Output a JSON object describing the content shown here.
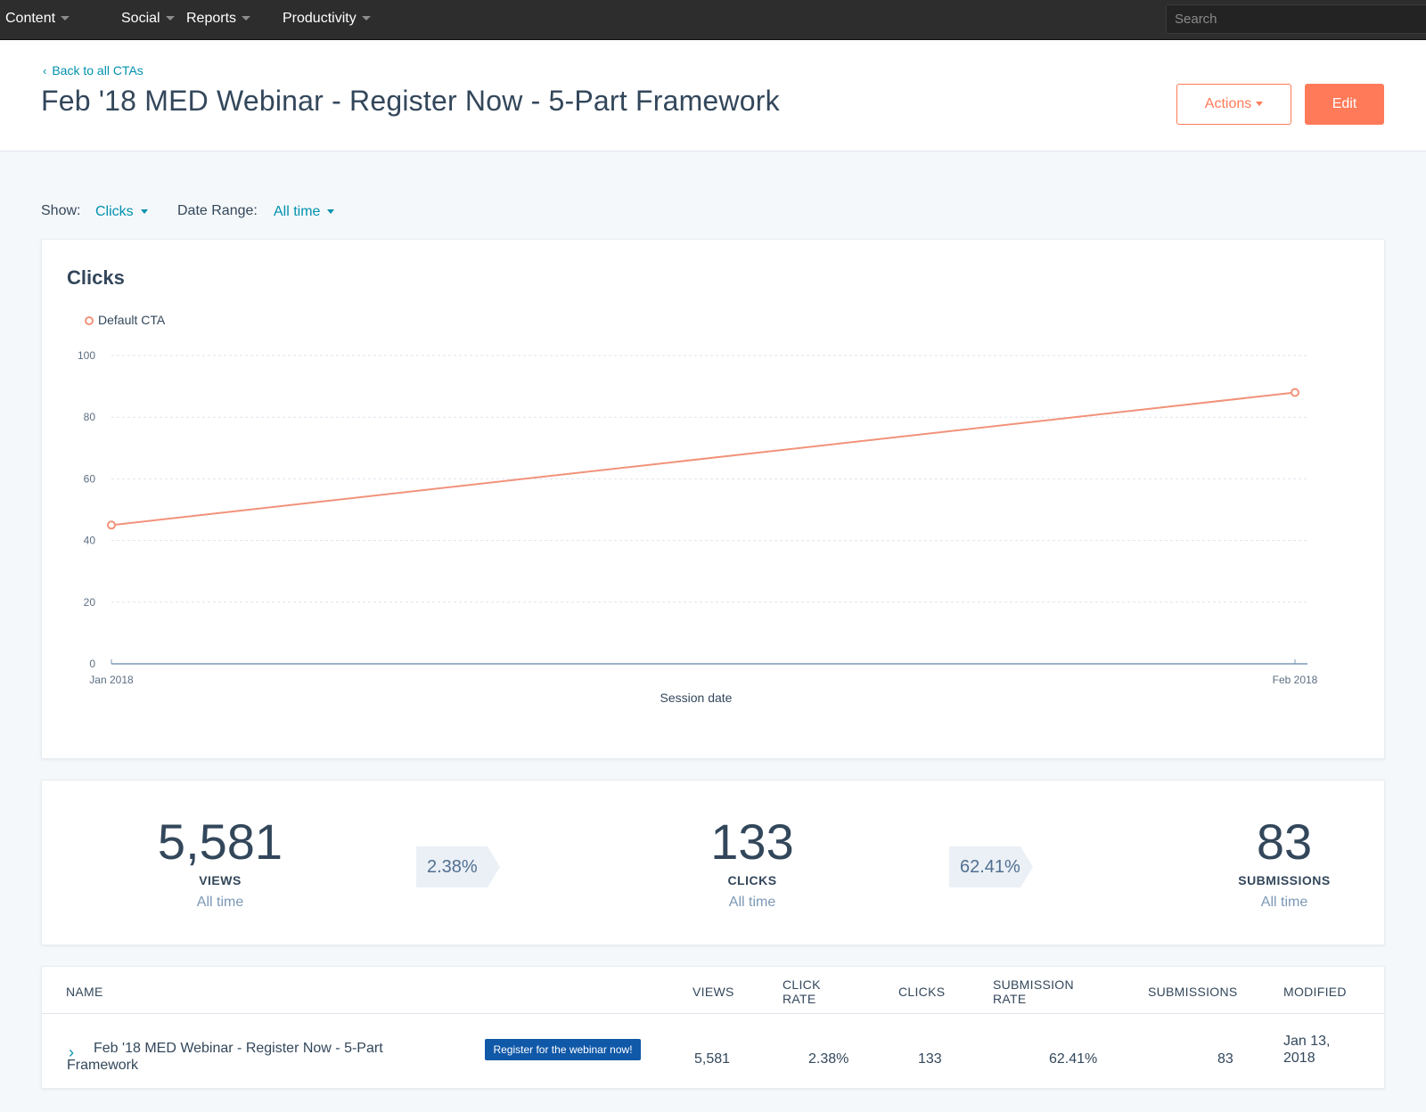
{
  "nav": {
    "items": [
      {
        "label": "Content"
      },
      {
        "label": "Social"
      },
      {
        "label": "Reports"
      },
      {
        "label": "Productivity"
      }
    ],
    "search_placeholder": "Search"
  },
  "header": {
    "back_link": "Back to all CTAs",
    "title": "Feb '18 MED Webinar - Register Now - 5-Part Framework",
    "actions_label": "Actions",
    "edit_label": "Edit"
  },
  "filters": {
    "show_label": "Show:",
    "show_value": "Clicks",
    "date_label": "Date Range:",
    "date_value": "All time"
  },
  "chart": {
    "title": "Clicks",
    "legend": "Default CTA",
    "series_color": "#f2927a",
    "xlabel": "Session date"
  },
  "chart_data": {
    "type": "line",
    "title": "Clicks",
    "x": [
      "Jan 2018",
      "Feb 2018"
    ],
    "series": [
      {
        "name": "Default CTA",
        "values": [
          45,
          88
        ]
      }
    ],
    "xlabel": "Session date",
    "ylabel": "",
    "ylim": [
      0,
      100
    ],
    "yticks": [
      0,
      20,
      40,
      60,
      80,
      100
    ],
    "grid": true,
    "legend_position": "top-left"
  },
  "stats": {
    "views": {
      "value": "5,581",
      "label": "VIEWS",
      "sub": "All time"
    },
    "click_rate": "2.38%",
    "clicks": {
      "value": "133",
      "label": "CLICKS",
      "sub": "All time"
    },
    "submission_rate": "62.41%",
    "submissions": {
      "value": "83",
      "label": "SUBMISSIONS",
      "sub": "All time"
    }
  },
  "table": {
    "headers": {
      "name": "NAME",
      "views": "VIEWS",
      "click_rate": "CLICK RATE",
      "clicks": "CLICKS",
      "submission_rate": "SUBMISSION RATE",
      "submissions": "SUBMISSIONS",
      "modified": "MODIFIED"
    },
    "rows": [
      {
        "name": "Feb '18 MED Webinar - Register Now - 5-Part Framework",
        "cta_preview": "Register for the webinar now!",
        "views": "5,581",
        "click_rate": "2.38%",
        "clicks": "133",
        "submission_rate": "62.41%",
        "submissions": "83",
        "modified": "Jan 13, 2018"
      }
    ]
  }
}
